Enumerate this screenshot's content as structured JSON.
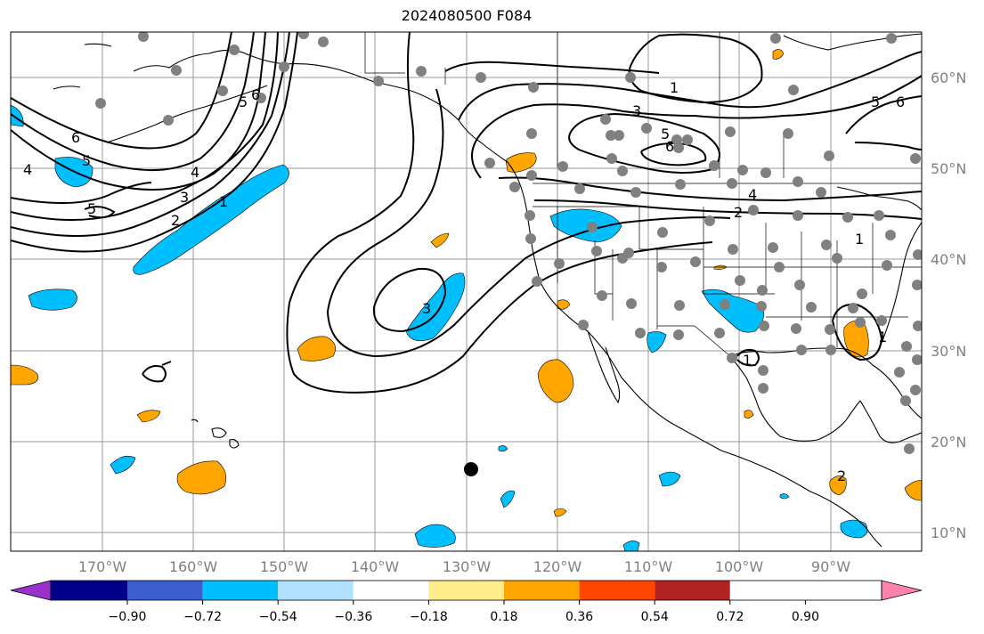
{
  "title": "2024080500 F084",
  "lat_labels": [
    "60°N",
    "50°N",
    "40°N",
    "30°N",
    "20°N",
    "10°N"
  ],
  "lon_labels": [
    "170°W",
    "160°W",
    "150°W",
    "140°W",
    "130°W",
    "120°W",
    "110°W",
    "100°W",
    "90°W"
  ],
  "colorbar": {
    "tick_labels": [
      "−0.90",
      "−0.72",
      "−0.54",
      "−0.36",
      "−0.18",
      "0.18",
      "0.36",
      "0.54",
      "0.72",
      "0.90"
    ],
    "colors": [
      "#9932cc",
      "#00008b",
      "#3a5fcd",
      "#00bfff",
      "#b0e2ff",
      "#ffffff",
      "#ffec8b",
      "#ffa500",
      "#ff4500",
      "#b22222",
      "#ff82ab"
    ]
  },
  "contour_labels": [
    "6",
    "5",
    "4",
    "5",
    "4",
    "3",
    "2",
    "1",
    "3",
    "5",
    "6",
    "1",
    "3",
    "5",
    "6",
    "4",
    "2",
    "1",
    "1",
    "1",
    "5",
    "6",
    "2"
  ],
  "colors": {
    "positive_fill": "#ffa500",
    "negative_fill": "#00bfff",
    "station_dot": "#808080",
    "marker": "#000000"
  }
}
